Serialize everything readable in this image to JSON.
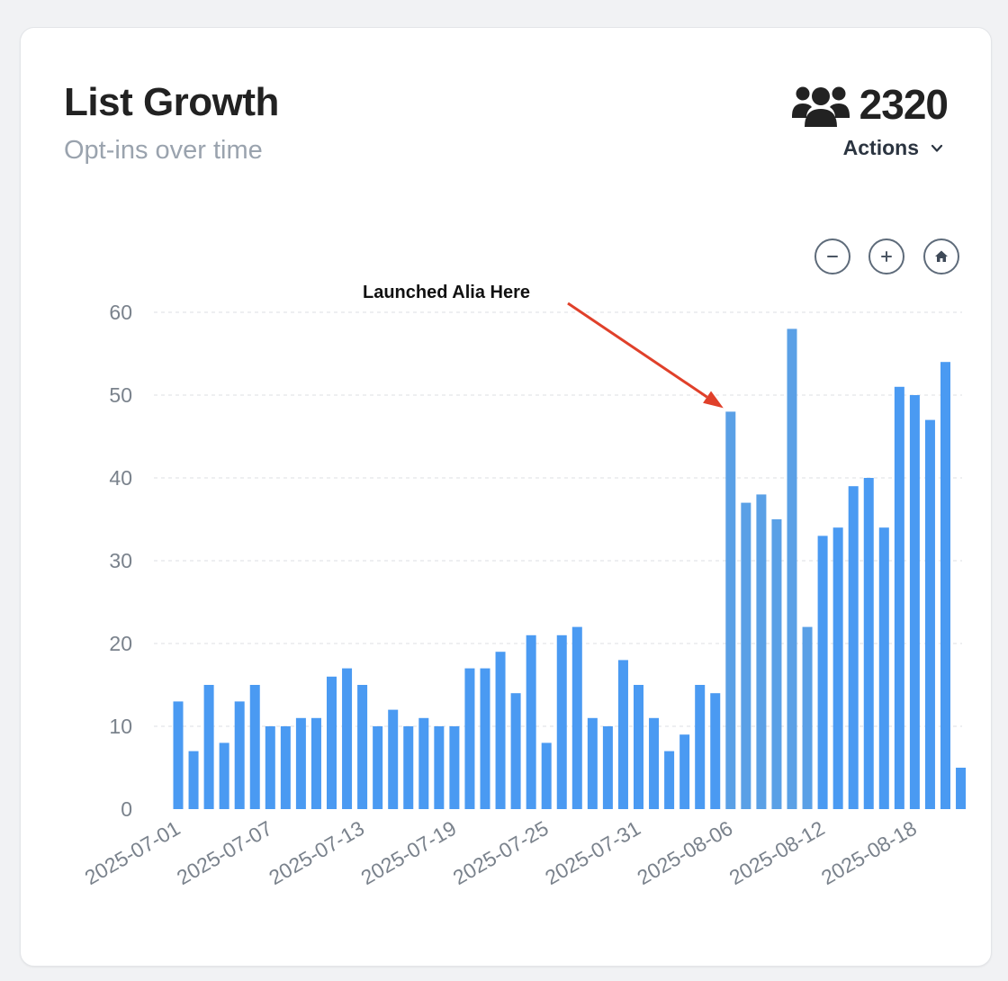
{
  "card": {
    "title": "List Growth",
    "subtitle": "Opt-ins over time",
    "subscriber_count": "2320",
    "actions_label": "Actions"
  },
  "toolbar": {
    "zoom_out_icon": "minus-circle-icon",
    "zoom_in_icon": "plus-circle-icon",
    "reset_icon": "home-icon"
  },
  "colors": {
    "bar": "#4a9af2",
    "bar_highlight": "#5aa0e6",
    "arrow": "#e0402a",
    "axis_text": "#7a828c",
    "grid": "#dcdfe3"
  },
  "chart_data": {
    "type": "bar",
    "title": "",
    "xlabel": "",
    "ylabel": "",
    "ylim": [
      0,
      60
    ],
    "yticks": [
      0,
      10,
      20,
      30,
      40,
      50,
      60
    ],
    "categories": [
      "2025-07-01",
      "2025-07-02",
      "2025-07-03",
      "2025-07-04",
      "2025-07-05",
      "2025-07-06",
      "2025-07-07",
      "2025-07-08",
      "2025-07-09",
      "2025-07-10",
      "2025-07-11",
      "2025-07-12",
      "2025-07-13",
      "2025-07-14",
      "2025-07-15",
      "2025-07-16",
      "2025-07-17",
      "2025-07-18",
      "2025-07-19",
      "2025-07-20",
      "2025-07-21",
      "2025-07-22",
      "2025-07-23",
      "2025-07-24",
      "2025-07-25",
      "2025-07-26",
      "2025-07-27",
      "2025-07-28",
      "2025-07-29",
      "2025-07-30",
      "2025-07-31",
      "2025-08-01",
      "2025-08-02",
      "2025-08-03",
      "2025-08-04",
      "2025-08-05",
      "2025-08-06",
      "2025-08-07",
      "2025-08-08",
      "2025-08-09",
      "2025-08-10",
      "2025-08-11",
      "2025-08-12",
      "2025-08-13",
      "2025-08-14",
      "2025-08-15",
      "2025-08-16",
      "2025-08-17",
      "2025-08-18",
      "2025-08-19",
      "2025-08-20",
      "2025-08-21"
    ],
    "xtick_labels": [
      "2025-07-01",
      "2025-07-07",
      "2025-07-13",
      "2025-07-19",
      "2025-07-25",
      "2025-07-31",
      "2025-08-06",
      "2025-08-12",
      "2025-08-18"
    ],
    "values": [
      13,
      7,
      15,
      8,
      13,
      15,
      10,
      10,
      11,
      11,
      16,
      17,
      15,
      10,
      12,
      10,
      11,
      10,
      10,
      17,
      17,
      19,
      14,
      21,
      8,
      21,
      22,
      11,
      10,
      18,
      15,
      11,
      7,
      9,
      15,
      14,
      48,
      37,
      38,
      35,
      58,
      22,
      33,
      34,
      39,
      40,
      34,
      51,
      50,
      47,
      54,
      5
    ],
    "highlight_range": [
      "2025-08-06",
      "2025-08-11"
    ],
    "annotation": {
      "text": "Launched Alia Here",
      "points_to": "2025-08-06"
    },
    "grid": true,
    "legend": "none"
  }
}
